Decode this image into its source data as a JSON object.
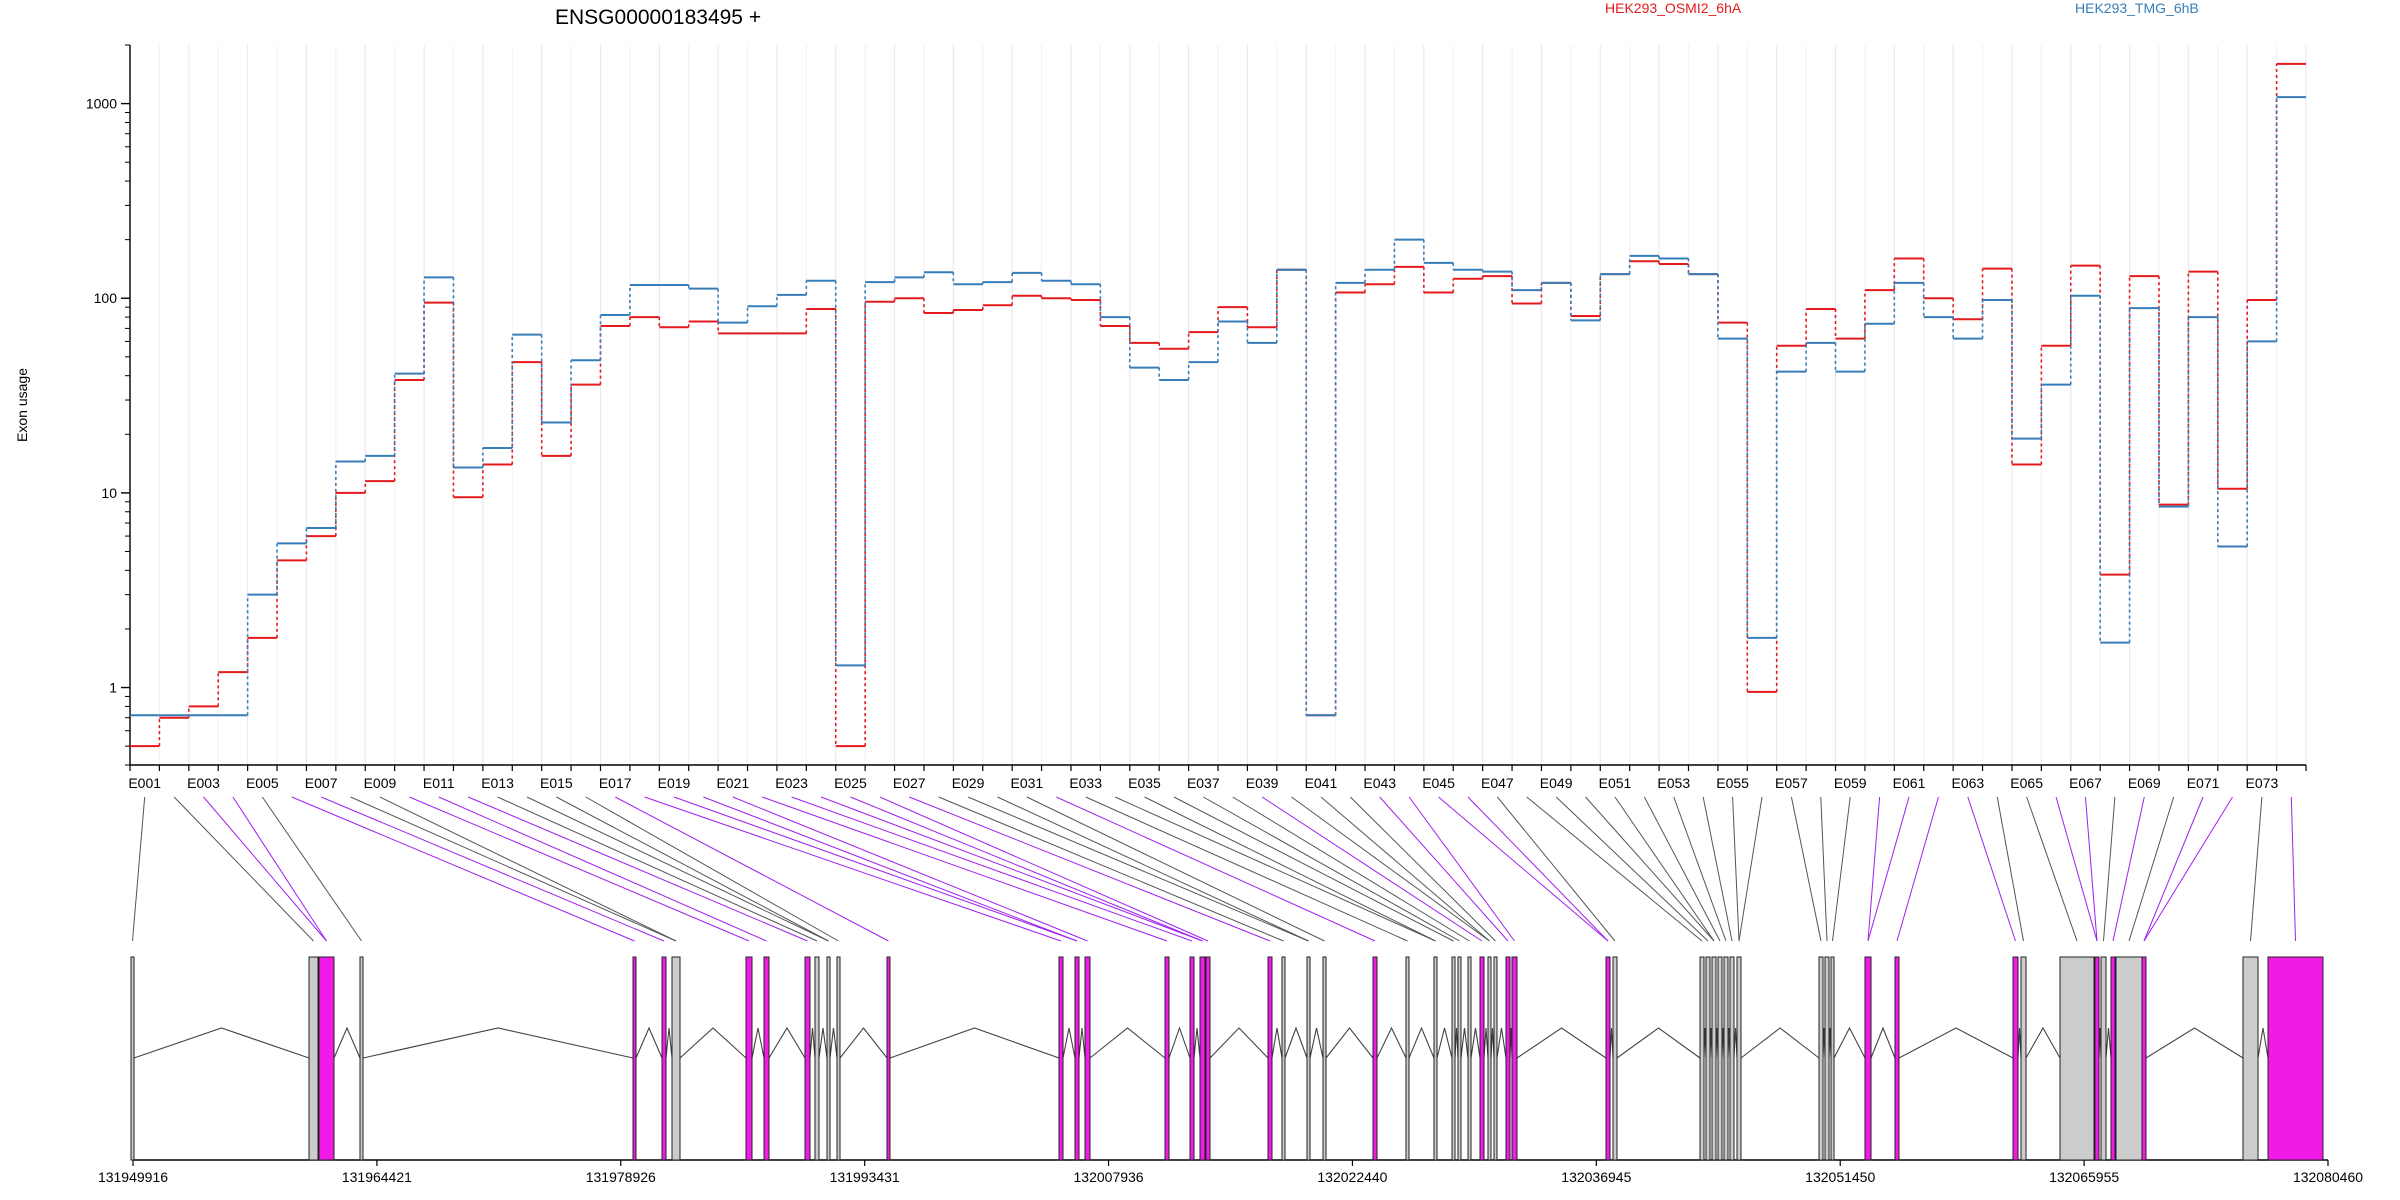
{
  "chart_data": {
    "type": "line",
    "title": "ENSG00000183495 +",
    "xlabel": "",
    "ylabel": "Exon usage",
    "yscale": "log",
    "ylim": [
      0.4,
      2000
    ],
    "yticks": [
      1,
      10,
      100,
      1000
    ],
    "ytick_labels": [
      "1",
      "10",
      "100",
      "1000"
    ],
    "grid": "vertical lines at each exon",
    "legend_placement": "top, right of title",
    "categories": [
      "E001",
      "E002",
      "E003",
      "E004",
      "E005",
      "E006",
      "E007",
      "E008",
      "E009",
      "E010",
      "E011",
      "E012",
      "E013",
      "E014",
      "E015",
      "E016",
      "E017",
      "E018",
      "E019",
      "E020",
      "E021",
      "E022",
      "E023",
      "E024",
      "E025",
      "E026",
      "E027",
      "E028",
      "E029",
      "E030",
      "E031",
      "E032",
      "E033",
      "E034",
      "E035",
      "E036",
      "E037",
      "E038",
      "E039",
      "E040",
      "E041",
      "E042",
      "E043",
      "E044",
      "E045",
      "E046",
      "E047",
      "E048",
      "E049",
      "E050",
      "E051",
      "E052",
      "E053",
      "E054",
      "E055",
      "E056",
      "E057",
      "E058",
      "E059",
      "E060",
      "E061",
      "E062",
      "E063",
      "E064",
      "E065",
      "E066",
      "E067",
      "E068",
      "E069",
      "E070",
      "E071",
      "E072",
      "E073",
      "E074"
    ],
    "tick_labels": [
      "E001",
      "E003",
      "E005",
      "E007",
      "E009",
      "E011",
      "E013",
      "E015",
      "E017",
      "E019",
      "E021",
      "E023",
      "E025",
      "E027",
      "E029",
      "E031",
      "E033",
      "E035",
      "E037",
      "E039",
      "E041",
      "E043",
      "E045",
      "E047",
      "E049",
      "E051",
      "E053",
      "E055",
      "E057",
      "E059",
      "E061",
      "E063",
      "E065",
      "E067",
      "E069",
      "E071",
      "E073"
    ],
    "series": [
      {
        "name": "HEK293_OSMI2_6hA",
        "color": "#e41a1c",
        "values": [
          0.5,
          0.7,
          0.8,
          1.2,
          1.8,
          4.5,
          6,
          10,
          11.5,
          38,
          95,
          9.5,
          14,
          47,
          15.5,
          36,
          72,
          80,
          71,
          76,
          66,
          66,
          66,
          88,
          0.5,
          96,
          100,
          84,
          87,
          92,
          103,
          100,
          98,
          72,
          59,
          55,
          67,
          90,
          71,
          140,
          0.72,
          107,
          118,
          145,
          107,
          126,
          130,
          94,
          120,
          81,
          133,
          155,
          150,
          133,
          75,
          0.95,
          57,
          88,
          62,
          110,
          160,
          100,
          78,
          142,
          14,
          57,
          147,
          3.8,
          130,
          8.7,
          137,
          10.5,
          98,
          1600
        ]
      },
      {
        "name": "HEK293_TMG_6hB",
        "color": "#377eb8",
        "values": [
          0.72,
          0.72,
          0.72,
          0.72,
          3,
          5.5,
          6.6,
          14.5,
          15.5,
          41,
          128,
          13.5,
          17,
          65,
          23,
          48,
          82,
          117,
          117,
          112,
          75,
          91,
          104,
          123,
          1.3,
          121,
          128,
          136,
          118,
          121,
          135,
          123,
          118,
          80,
          44,
          38,
          47,
          76,
          59,
          140,
          0.72,
          120,
          140,
          200,
          152,
          140,
          137,
          110,
          120,
          77,
          133,
          165,
          160,
          133,
          62,
          1.8,
          42,
          59,
          42,
          74,
          120,
          80,
          62,
          98,
          19,
          36,
          103,
          1.7,
          89,
          8.5,
          80,
          5.3,
          60,
          1080
        ]
      }
    ],
    "gene_model": {
      "coordinate_labels": [
        "131949916",
        "131964421",
        "131978926",
        "131993431",
        "132007936",
        "132022440",
        "132036945",
        "132051450",
        "132065955",
        "132080460"
      ],
      "genomic_range": [
        131949916,
        132080460
      ]
    }
  }
}
